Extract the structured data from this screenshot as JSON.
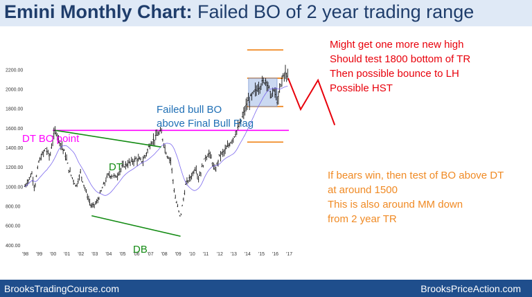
{
  "header": {
    "title_bold": "Emini Monthly Chart:",
    "title_rest": " Failed BO of 2 year trading range"
  },
  "footer": {
    "left": "BrooksTradingCourse.com",
    "right": "BrooksPriceAction.com"
  },
  "colors": {
    "header_bg": "#dfe9f6",
    "title_text": "#1f3d6b",
    "footer_bg": "#1f4e8c",
    "red": "#e8000b",
    "blue_text": "#1f6fb5",
    "magenta": "#ff00ff",
    "green": "#138b13",
    "orange": "#f08a24",
    "range_box": "#a9bfe8",
    "moving_average": "#7b68ee"
  },
  "chart_data": {
    "type": "candlestick",
    "title": "Emini Monthly Chart: Failed BO of 2 year trading range",
    "x_tick_labels": [
      "'98",
      "'99",
      "'00",
      "'01",
      "'02",
      "'03",
      "'04",
      "'05",
      "'06",
      "'07",
      "'08",
      "'09",
      "'10",
      "'11",
      "'12",
      "'13",
      "'14",
      "'15",
      "'16",
      "'17"
    ],
    "y_ticks": [
      400,
      600,
      800,
      1000,
      1200,
      1400,
      1600,
      1800,
      2000,
      2200
    ],
    "y_tick_labels": [
      "400.00",
      "600.00",
      "800.00",
      "1000.00",
      "1200.00",
      "1400.00",
      "1600.00",
      "1800.00",
      "2000.00",
      "2200.00"
    ],
    "ylim": [
      300,
      2280
    ],
    "xlim": [
      1997.8,
      2017.3
    ],
    "price_anchors": [
      [
        1998.0,
        1000
      ],
      [
        1998.5,
        1130
      ],
      [
        1998.7,
        980
      ],
      [
        1999.0,
        1250
      ],
      [
        1999.5,
        1390
      ],
      [
        1999.8,
        1300
      ],
      [
        2000.0,
        1480
      ],
      [
        2000.2,
        1580
      ],
      [
        2000.5,
        1470
      ],
      [
        2000.9,
        1330
      ],
      [
        2001.2,
        1160
      ],
      [
        2001.7,
        1000
      ],
      [
        2002.0,
        1140
      ],
      [
        2002.5,
        900
      ],
      [
        2002.8,
        790
      ],
      [
        2003.2,
        840
      ],
      [
        2003.6,
        990
      ],
      [
        2004.0,
        1120
      ],
      [
        2004.6,
        1100
      ],
      [
        2005.0,
        1200
      ],
      [
        2006.0,
        1280
      ],
      [
        2006.5,
        1260
      ],
      [
        2007.0,
        1430
      ],
      [
        2007.5,
        1520
      ],
      [
        2007.8,
        1560
      ],
      [
        2008.2,
        1330
      ],
      [
        2008.5,
        1270
      ],
      [
        2008.8,
        900
      ],
      [
        2009.2,
        680
      ],
      [
        2009.6,
        1030
      ],
      [
        2010.0,
        1110
      ],
      [
        2010.3,
        1200
      ],
      [
        2010.5,
        1080
      ],
      [
        2011.0,
        1300
      ],
      [
        2011.3,
        1340
      ],
      [
        2011.7,
        1150
      ],
      [
        2012.0,
        1310
      ],
      [
        2012.5,
        1380
      ],
      [
        2013.0,
        1500
      ],
      [
        2013.5,
        1640
      ],
      [
        2014.0,
        1850
      ],
      [
        2014.5,
        1960
      ],
      [
        2015.0,
        2050
      ],
      [
        2015.4,
        2100
      ],
      [
        2015.7,
        1930
      ],
      [
        2016.0,
        1980
      ],
      [
        2016.2,
        1860
      ],
      [
        2016.5,
        2100
      ],
      [
        2016.7,
        2170
      ],
      [
        2016.9,
        2130
      ]
    ],
    "trading_range": {
      "x_start": 2014.1,
      "x_end": 2016.15,
      "y_low": 1820,
      "y_high": 2110
    },
    "reference_lines": [
      {
        "name": "DT BO point",
        "y": 1575,
        "x_start": 2000.0,
        "x_end": 2017.0,
        "color": "magenta"
      },
      {
        "name": "measured move up",
        "y": 2400,
        "x_start": 2014.0,
        "x_end": 2016.6,
        "color": "orange"
      },
      {
        "name": "trading range top",
        "y": 2110,
        "x_start": 2014.0,
        "x_end": 2016.6,
        "color": "orange"
      },
      {
        "name": "trading range bottom",
        "y": 1820,
        "x_start": 2014.0,
        "x_end": 2016.6,
        "color": "orange"
      },
      {
        "name": "measured move down",
        "y": 1455,
        "x_start": 2014.0,
        "x_end": 2016.6,
        "color": "orange"
      }
    ],
    "trend_lines": [
      {
        "name": "DT",
        "points": [
          [
            2000.2,
            1575
          ],
          [
            2007.8,
            1405
          ]
        ],
        "color": "green"
      },
      {
        "name": "DB",
        "points": [
          [
            2002.8,
            700
          ],
          [
            2009.2,
            490
          ]
        ],
        "color": "green"
      }
    ],
    "projection_path": [
      [
        2016.95,
        2110
      ],
      [
        2017.85,
        1790
      ],
      [
        2019.1,
        2090
      ],
      [
        2020.3,
        1630
      ]
    ],
    "annotations": {
      "dt_bo_point": "DT BO point",
      "dt": "DT",
      "db": "DB",
      "bull_bo_line1": "Failed bull BO",
      "bull_bo_line2": "above Final Bull Flag",
      "red_line1": "Might get one more new high",
      "red_line2": "Should test 1800 bottom of TR",
      "red_line3": "Then possible bounce to LH",
      "red_line4": "Possible HST",
      "orange_line1": "If bears win, then test of BO above DT",
      "orange_line2": "at around 1500",
      "orange_line3": "This is also around MM down",
      "orange_line4": "from 2 year TR"
    }
  }
}
